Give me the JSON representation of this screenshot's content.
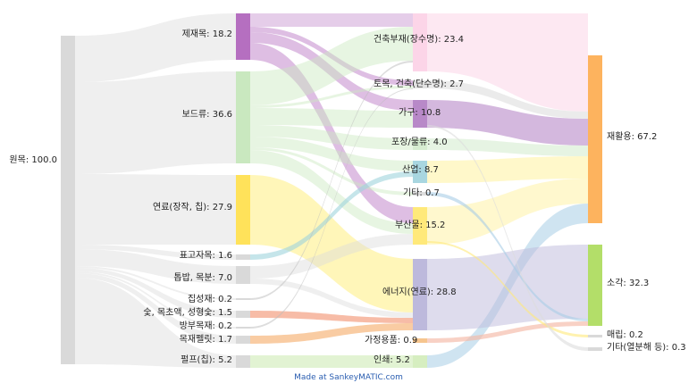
{
  "diagram": {
    "type": "sankey",
    "credit": "Made at SankeyMATIC.com",
    "nodes": [
      {
        "id": "wonmok",
        "label": "원목: 100.0",
        "color": "#d9d9d9"
      },
      {
        "id": "jejaemok",
        "label": "제재목: 18.2",
        "color": "#b56fc0"
      },
      {
        "id": "bodeu",
        "label": "보드류: 36.6",
        "color": "#c9e8bf"
      },
      {
        "id": "yeonryo",
        "label": "연료(장작, 칩): 27.9",
        "color": "#ffe25a"
      },
      {
        "id": "pyogo",
        "label": "표고자목: 1.6",
        "color": "#d9d9d9"
      },
      {
        "id": "tombap",
        "label": "톱밥, 목분: 7.0",
        "color": "#d9d9d9"
      },
      {
        "id": "jipseong",
        "label": "집성재: 0.2",
        "color": "#d9d9d9"
      },
      {
        "id": "sut",
        "label": "숯, 목초액, 성형숯: 1.5",
        "color": "#d9d9d9"
      },
      {
        "id": "bangbu",
        "label": "방부목재: 0.2",
        "color": "#d9d9d9"
      },
      {
        "id": "pellet",
        "label": "목재펠릿: 1.7",
        "color": "#d9d9d9"
      },
      {
        "id": "pulp",
        "label": "펄프(칩): 5.2",
        "color": "#d9d9d9"
      },
      {
        "id": "geonchuk",
        "label": "건축부재(장수명): 23.4",
        "color": "#fcd5e8"
      },
      {
        "id": "tomok",
        "label": "토목, 건축(단수명): 2.7",
        "color": "#e2e2e2"
      },
      {
        "id": "gagu",
        "label": "가구: 10.8",
        "color": "#b889c8"
      },
      {
        "id": "pojang",
        "label": "포장/물류: 4.0",
        "color": "#d6ecd0"
      },
      {
        "id": "saneop",
        "label": "산업: 8.7",
        "color": "#a8d6e0"
      },
      {
        "id": "gita",
        "label": "기타: 0.7",
        "color": "#dddddd"
      },
      {
        "id": "busanmul",
        "label": "부산물: 15.2",
        "color": "#ffe97a"
      },
      {
        "id": "energy",
        "label": "에너지(연료): 28.8",
        "color": "#bdb9dc"
      },
      {
        "id": "gajeong",
        "label": "가정용품: 0.9",
        "color": "#f6c58e"
      },
      {
        "id": "inswae",
        "label": "인쇄: 5.2",
        "color": "#d6eec0"
      },
      {
        "id": "jaehwal",
        "label": "재활용: 67.2",
        "color": "#fdb35e"
      },
      {
        "id": "sogak",
        "label": "소각: 32.3",
        "color": "#b3de69"
      },
      {
        "id": "maerip",
        "label": "매립: 0.2",
        "color": "#d9d9d9"
      },
      {
        "id": "gita2",
        "label": "기타(열분해 등): 0.3",
        "color": "#d9d9d9"
      }
    ]
  }
}
